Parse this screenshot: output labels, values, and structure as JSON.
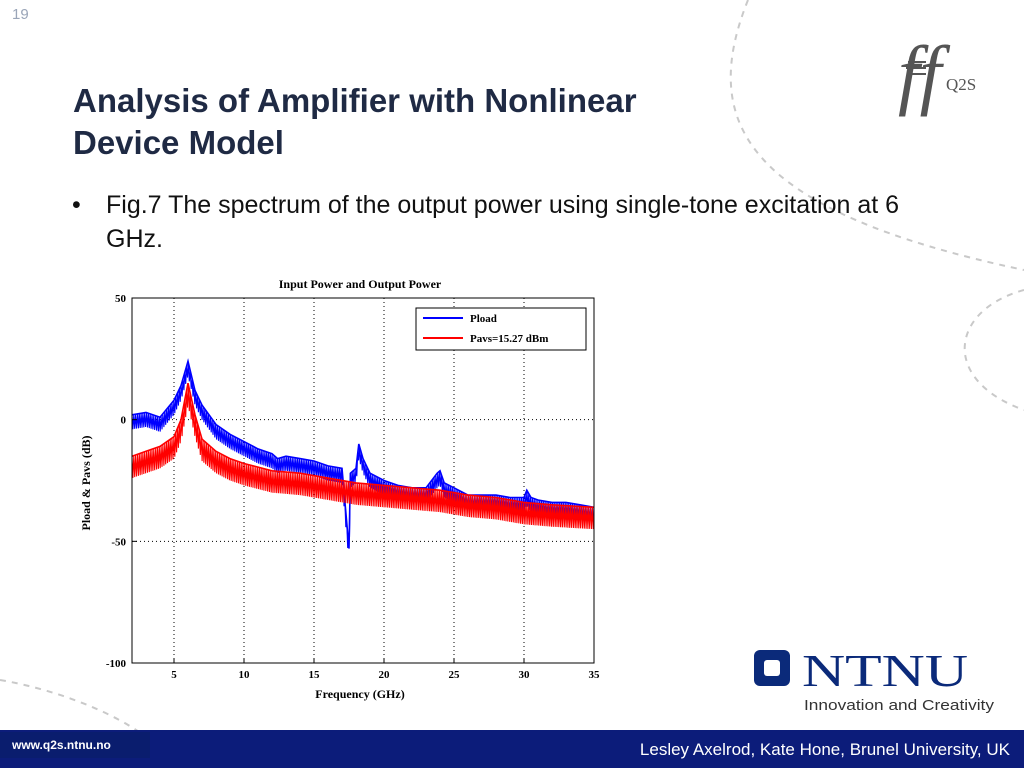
{
  "slide": {
    "number": "19"
  },
  "title": {
    "line1": "Analysis of Amplifier with Nonlinear",
    "line2": "Device Model"
  },
  "bullet": {
    "marker": "•",
    "text": "Fig.7 The spectrum of the output power using single-tone excitation at 6 GHz."
  },
  "logos": {
    "q2s_text": "Q2S",
    "ntnu_name": "NTNU",
    "ntnu_tagline": "Innovation and Creativity"
  },
  "footer": {
    "url": "www.q2s.ntnu.no",
    "credit": "Lesley Axelrod, Kate Hone, Brunel University, UK"
  },
  "colors": {
    "title": "#1f2a44",
    "footer_bg": "#0c1c7a",
    "pload": "#0000ff",
    "pavs": "#ff0000",
    "ntnu": "#0b2a7a"
  },
  "chart_data": {
    "type": "line",
    "title": "Input Power and Output Power",
    "xlabel": "Frequency (GHz)",
    "ylabel": "Pload & Pavs (dB)",
    "xlim": [
      2,
      35
    ],
    "ylim": [
      -100,
      50
    ],
    "xticks": [
      5,
      10,
      15,
      20,
      25,
      30,
      35
    ],
    "yticks": [
      -100,
      -50,
      0,
      50
    ],
    "grid": true,
    "legend_position": "top-right",
    "series": [
      {
        "name": "Pload",
        "color": "#0000ff",
        "x": [
          2,
          3,
          4,
          5,
          5.5,
          6,
          6.5,
          7,
          8,
          9,
          10,
          11,
          12,
          12.4,
          13,
          14,
          15,
          16,
          17,
          17.5,
          17.6,
          18,
          18.2,
          18.5,
          19,
          20,
          21,
          22,
          23,
          23.8,
          24,
          24.3,
          25,
          26,
          27,
          28,
          29,
          30,
          30.2,
          30.5,
          31,
          32,
          33,
          34,
          35
        ],
        "values": [
          2,
          3,
          1,
          8,
          14,
          24,
          12,
          6,
          -2,
          -6,
          -9,
          -12,
          -14,
          -16,
          -15,
          -16,
          -17,
          -19,
          -20,
          -53,
          -22,
          -20,
          -10,
          -16,
          -22,
          -25,
          -27,
          -28,
          -28,
          -22,
          -21,
          -26,
          -28,
          -31,
          -31,
          -31,
          -32,
          -32,
          -29,
          -32,
          -33,
          -34,
          -34,
          -35,
          -36
        ]
      },
      {
        "name": "Pavs=15.27 dBm",
        "color": "#ff0000",
        "x": [
          2,
          3,
          4,
          5,
          5.5,
          6,
          6.5,
          7,
          8,
          9,
          10,
          12,
          14,
          16,
          18,
          20,
          22,
          24,
          26,
          28,
          30,
          32,
          35
        ],
        "values": [
          -15,
          -13,
          -11,
          -7,
          0,
          15,
          2,
          -8,
          -13,
          -16,
          -18,
          -21,
          -22,
          -24,
          -26,
          -27,
          -28,
          -29,
          -31,
          -32,
          -34,
          -35,
          -36
        ]
      }
    ]
  }
}
